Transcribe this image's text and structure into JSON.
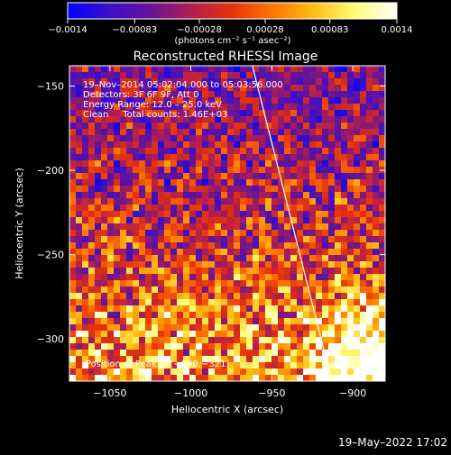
{
  "chart_data": {
    "type": "heatmap",
    "title": "Reconstructed RHESSI Image",
    "xlabel": "Heliocentric X (arcsec)",
    "ylabel": "Heliocentric Y (arcsec)",
    "xlim": [
      -1075,
      -880
    ],
    "ylim": [
      -325,
      -138
    ],
    "x_ticks": [
      -1050,
      -1000,
      -950,
      -900
    ],
    "y_ticks": [
      -150,
      -200,
      -250,
      -300
    ],
    "x_tick_labels": [
      "−1050",
      "−1000",
      "−950",
      "−900"
    ],
    "y_tick_labels": [
      "−150",
      "−200",
      "−250",
      "−300"
    ],
    "colorbar": {
      "range": [
        -0.0014,
        0.0014
      ],
      "ticks": [
        -0.0014,
        -0.00083,
        -0.00028,
        0.00028,
        0.00083,
        0.0014
      ],
      "tick_labels": [
        "−0.0014",
        "−0.00083",
        "−0.00028",
        "0.00028",
        "0.00083",
        "0.0014"
      ],
      "unit_label": "(photons cm⁻² s⁻¹ asec⁻²)",
      "colors": [
        "#0000ff",
        "#3c0fc8",
        "#64149a",
        "#b01e52",
        "#e6320a",
        "#ff7800",
        "#ffbe14",
        "#ffff78",
        "#ffffff"
      ]
    },
    "info_lines": [
      "19–Nov–2014 05:02:04.000 to 05:03:56.000",
      "Detectors: 3F 6F 9F, Att 0",
      "Energy Range: 12.0 – 25.0 keV",
      "Clean     Total counts: 1.46E+03"
    ],
    "peak_label": "Position of Peak = [−890,−321]",
    "peak_position": [
      -890,
      -321
    ],
    "limb_line": [
      [
        -962,
        -138
      ],
      [
        -913,
        -325
      ]
    ],
    "grid": false
  },
  "footer": {
    "timestamp": "19–May–2022 17:02"
  }
}
